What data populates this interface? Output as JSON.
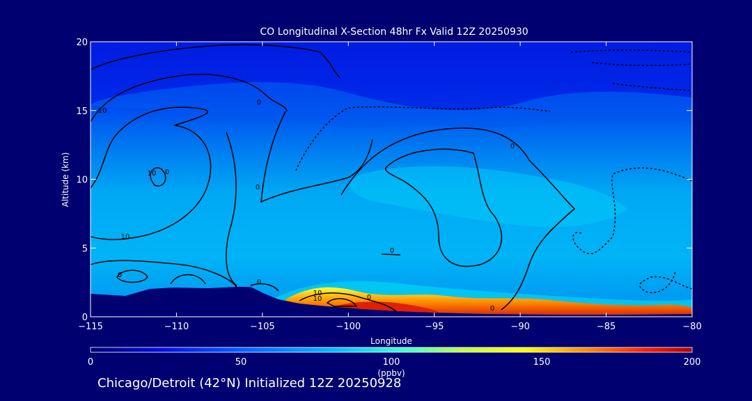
{
  "chart_data": {
    "type": "heatmap",
    "title": "CO Longitudinal X-Section 48hr  Fx Valid 12Z 20250930",
    "xlabel": "Longitude",
    "ylabel": "Altitude (km)",
    "xlim": [
      -115,
      -80
    ],
    "ylim": [
      0,
      20
    ],
    "x_ticks": [
      "−115",
      "−110",
      "−105",
      "−100",
      "−95",
      "−90",
      "−85",
      "−80"
    ],
    "y_ticks": [
      "0",
      "5",
      "10",
      "15",
      "20"
    ],
    "colorbar": {
      "range": [
        0,
        200
      ],
      "ticks": [
        "0",
        "50",
        "100",
        "150",
        "200"
      ],
      "units": "(ppbv)"
    },
    "contour_labels": [
      "10",
      "0",
      "10",
      "0",
      "0",
      "10",
      "0",
      "0",
      "10",
      "10",
      "0",
      "0",
      "0",
      "0"
    ],
    "colors": {
      "background": "#000070",
      "terrain": "#000070"
    }
  },
  "caption": "Chicago/Detroit (42°N) Initialized 12Z 20250928"
}
